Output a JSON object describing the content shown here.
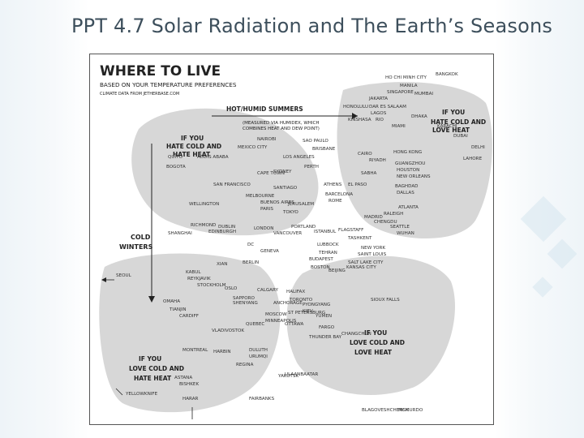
{
  "slide": {
    "title": "PPT 4.7 Solar Radiation and The Earth’s Seasons"
  },
  "comic": {
    "title": "WHERE TO LIVE",
    "subtitle": "BASED ON YOUR TEMPERATURE PREFERENCES",
    "source": "CLIMATE DATA FROM JETHERBASE.COM",
    "axis_hot_label": "HOT/HUMID SUMMERS",
    "axis_hot_note_1": "(MEASURED VIA HUMIDEX, WHICH",
    "axis_hot_note_2": "COMBINES HEAT AND DEW POINT)",
    "axis_cold_label_1": "COLD",
    "axis_cold_label_2": "WINTERS",
    "region_top_left_1": "IF YOU",
    "region_top_left_2": "HATE COLD AND",
    "region_top_left_3": "HATE HEAT",
    "region_top_right_1": "IF YOU",
    "region_top_right_2": "HATE COLD AND",
    "region_top_right_3": "LOVE HEAT",
    "region_bottom_left_1": "IF YOU",
    "region_bottom_left_2": "LOVE COLD AND",
    "region_bottom_left_3": "HATE HEAT",
    "region_bottom_right_1": "IF YOU",
    "region_bottom_right_2": "LOVE COLD AND",
    "region_bottom_right_3": "LOVE HEAT",
    "cities": [
      "HO CHI MINH CITY",
      "BANGKOK",
      "MANILA",
      "SINGAPORE",
      "MUMBAI",
      "JAKARTA",
      "HONOLULU",
      "DAR ES SALAAM",
      "LAGOS",
      "RIO",
      "KINSHASA",
      "DHAKA",
      "MIAMI",
      "KARACHI",
      "DUBAI",
      "DELHI",
      "NAIROBI",
      "MEXICO CITY",
      "SAO PAULO",
      "BRISBANE",
      "CAIRO",
      "RIYADH",
      "HONG KONG",
      "GUANGZHOU",
      "HOUSTON",
      "NEW ORLEANS",
      "LAHORE",
      "QUITO",
      "BOGOTA",
      "ADDIS ABABA",
      "LOS ANGELES",
      "PERTH",
      "CAPE TOWN",
      "SYDNEY",
      "SABHA",
      "SAN FRANCISCO",
      "SANTIAGO",
      "ATHENS",
      "EL PASO",
      "BAGHDAD",
      "DALLAS",
      "MELBOURNE",
      "BARCELONA",
      "ROME",
      "BUENOS AIRES",
      "PARIS",
      "JERUSALEM",
      "WELLINGTON",
      "ATLANTA",
      "RALEIGH",
      "TOKYO",
      "MADRID",
      "CHENGDU",
      "RICHMOND",
      "DUBLIN",
      "LONDON",
      "PORTLAND",
      "ISTANBUL",
      "SEATTLE",
      "WUHAN",
      "SHANGHAI",
      "EDINBURGH",
      "VANCOUVER",
      "FLAGSTAFF",
      "TASHKENT",
      "DC",
      "GENEVA",
      "LUBBOCK",
      "TEHRAN",
      "NEW YORK",
      "SAINT LOUIS",
      "XIAN",
      "BERLIN",
      "BUDAPEST",
      "BOSTON",
      "SALT LAKE CITY",
      "KANSAS CITY",
      "BEIJING",
      "SEOUL",
      "KABUL",
      "REYKJAVIK",
      "STOCKHOLM",
      "OSLO",
      "CALGARY",
      "HALIFAX",
      "TORONTO",
      "SAPPORO",
      "PYONGYANG",
      "KIEV",
      "SIOUX FALLS",
      "SHENYANG",
      "ANCHORAGE",
      "YUMEN",
      "OMAHA",
      "TIANJIN",
      "CARDIFF",
      "ST PETERSBURG",
      "MOSCOW",
      "MINNEAPOLIS",
      "QUEBEC",
      "OTTAWA",
      "VLADIVOSTOK",
      "FARGO",
      "THUNDER BAY",
      "CHANGCHUN",
      "MONTREAL",
      "HARBIN",
      "DULUTH",
      "URUMQI",
      "REGINA",
      "ASTANA",
      "BISHKEK",
      "ULAANBAATAR",
      "FAIRBANKS",
      "YAKUTSK",
      "HARAR",
      "YELLOWKNIFE",
      "BLAGOVESHCHENSK",
      "MCMURDO"
    ]
  }
}
